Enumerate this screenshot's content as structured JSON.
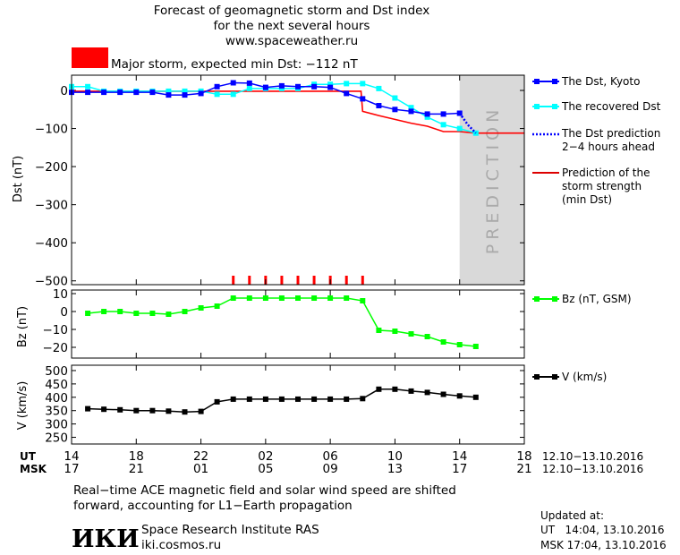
{
  "header": {
    "title_line1": "Forecast of geomagnetic storm and Dst index",
    "title_line2": "for the next several hours",
    "title_line3": "www.spaceweather.ru",
    "status_text": "Major storm, expected min Dst: −112 nT",
    "status_color": "#ff0000"
  },
  "colors": {
    "dst": "#0000ff",
    "recovered": "#00ffff",
    "prediction": "#0000ff",
    "strength": "#ff0000",
    "bz": "#00ff00",
    "v": "#000000",
    "prediction_band": "#d9d9d9"
  },
  "prediction_label": "PREDICTION",
  "x_axis": {
    "ut_label": "UT",
    "msk_label": "MSK",
    "ut_ticks": [
      "14",
      "18",
      "22",
      "02",
      "06",
      "10",
      "14",
      "18"
    ],
    "msk_ticks": [
      "17",
      "21",
      "01",
      "05",
      "09",
      "13",
      "17",
      "21"
    ],
    "date_range_ut": "12.10−13.10.2016",
    "date_range_msk": "12.10−13.10.2016"
  },
  "chart_data": [
    {
      "type": "line",
      "ylabel": "Dst (nT)",
      "ylim": [
        -510,
        40
      ],
      "yticks": [
        0,
        -100,
        -200,
        -300,
        -400,
        -500
      ],
      "ytick_labels": [
        "0",
        "−100",
        "−200",
        "−300",
        "−400",
        "−500"
      ],
      "xlim": [
        14,
        42
      ],
      "series": [
        {
          "name": "The Dst, Kyoto",
          "x": [
            14,
            15,
            16,
            17,
            18,
            19,
            20,
            21,
            22,
            23,
            24,
            25,
            26,
            27,
            28,
            29,
            30,
            31,
            32,
            33,
            34,
            35,
            36,
            37,
            38
          ],
          "y": [
            -5,
            -5,
            -5,
            -5,
            -5,
            -5,
            -12,
            -12,
            -8,
            10,
            20,
            19,
            8,
            12,
            10,
            10,
            8,
            -8,
            -22,
            -40,
            -50,
            -55,
            -62,
            -62,
            -60
          ]
        },
        {
          "name": "The recovered Dst",
          "x": [
            14,
            15,
            16,
            17,
            18,
            19,
            20,
            21,
            22,
            23,
            24,
            25,
            26,
            27,
            28,
            29,
            30,
            31,
            32,
            33,
            34,
            35,
            36,
            37,
            38,
            39
          ],
          "y": [
            10,
            10,
            -2,
            -2,
            -2,
            -2,
            -2,
            -2,
            -2,
            -10,
            -10,
            5,
            5,
            5,
            5,
            16,
            16,
            18,
            18,
            5,
            -20,
            -45,
            -70,
            -90,
            -100,
            -112
          ]
        },
        {
          "name": "The Dst prediction 2−4 hours ahead",
          "x": [
            38,
            38.5,
            39
          ],
          "y": [
            -60,
            -90,
            -112
          ]
        },
        {
          "name": "Prediction of the storm strength (min Dst)",
          "x": [
            14,
            31.9,
            32,
            33,
            34,
            35,
            36,
            37,
            38,
            39,
            40,
            41,
            42
          ],
          "y": [
            -2,
            -2,
            -55,
            -66,
            -76,
            -86,
            -94,
            -108,
            -108,
            -112,
            -112,
            -112,
            -112
          ]
        }
      ],
      "prediction_band": [
        38,
        42
      ],
      "storm_marks_x": [
        24,
        25,
        26,
        27,
        28,
        29,
        30,
        31,
        32
      ]
    },
    {
      "type": "line",
      "ylabel": "Bz (nT)",
      "ylim": [
        -26,
        12
      ],
      "yticks": [
        10,
        0,
        -10,
        -20
      ],
      "ytick_labels": [
        "10",
        "0",
        "−10",
        "−20"
      ],
      "xlim": [
        14,
        42
      ],
      "series": [
        {
          "name": "Bz (nT, GSM)",
          "x": [
            15,
            16,
            17,
            18,
            19,
            20,
            21,
            22,
            23,
            24,
            25,
            26,
            27,
            28,
            29,
            30,
            31,
            32,
            33,
            34,
            35,
            36,
            37,
            38,
            39
          ],
          "y": [
            -1,
            0,
            0,
            -1,
            -1,
            -1.5,
            0,
            2,
            3,
            7.5,
            7.5,
            7.5,
            7.5,
            7.5,
            7.5,
            7.5,
            7.5,
            6,
            -10.5,
            -11,
            -12.5,
            -14,
            -17,
            -18.5,
            -19.5
          ]
        }
      ]
    },
    {
      "type": "line",
      "ylabel": "V (km/s)",
      "ylim": [
        225,
        520
      ],
      "yticks": [
        500,
        450,
        400,
        350,
        300,
        250
      ],
      "ytick_labels": [
        "500",
        "450",
        "400",
        "350",
        "300",
        "250"
      ],
      "xlim": [
        14,
        42
      ],
      "series": [
        {
          "name": "V (km/s)",
          "x": [
            15,
            16,
            17,
            18,
            19,
            20,
            21,
            22,
            23,
            24,
            25,
            26,
            27,
            28,
            29,
            30,
            31,
            32,
            33,
            34,
            35,
            36,
            37,
            38,
            39
          ],
          "y": [
            357,
            355,
            353,
            350,
            350,
            348,
            345,
            347,
            383,
            393,
            393,
            393,
            393,
            393,
            393,
            393,
            393,
            395,
            430,
            430,
            423,
            418,
            411,
            405,
            400
          ]
        }
      ]
    }
  ],
  "legend": {
    "dst_kyoto": "The Dst, Kyoto",
    "recovered": "The recovered Dst",
    "pred_line1": "The Dst prediction",
    "pred_line2": "2−4 hours ahead",
    "strength_line1": "Prediction of the",
    "strength_line2": "storm strength",
    "strength_line3": "(min Dst)",
    "bz": "Bz (nT, GSM)",
    "v": "V (km/s)"
  },
  "footer": {
    "note_line1": "Real−time ACE magnetic field and solar wind speed are shifted",
    "note_line2": "forward, accounting for L1−Earth propagation",
    "logo_text": "ИКИ",
    "institute": "Space Research Institute RAS",
    "site": "iki.cosmos.ru",
    "updated_label": "Updated at:",
    "updated_ut": "UT   14:04, 13.10.2016",
    "updated_msk": "MSK 17:04, 13.10.2016"
  }
}
